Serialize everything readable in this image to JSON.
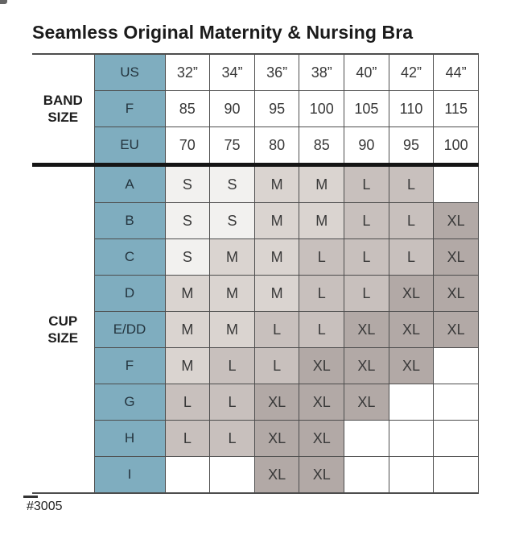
{
  "colors": {
    "teal": "#7FADBF",
    "size_s": "#F2F1EF",
    "size_m": "#DAD4D0",
    "size_l": "#C8C0BD",
    "size_xl": "#B2A9A6",
    "grid": "#4D4D4D",
    "divider": "#151515",
    "text": "#2F2F2F",
    "teal_text": "#24343E"
  },
  "chart_data": {
    "type": "table",
    "title": "Seamless Original Maternity & Nursing Bra",
    "product_code": "#3005",
    "band_size": {
      "label": "BAND SIZE",
      "rows": [
        {
          "header": "US",
          "values": [
            "32”",
            "34”",
            "36”",
            "38”",
            "40”",
            "42”",
            "44”"
          ]
        },
        {
          "header": "F",
          "values": [
            "85",
            "90",
            "95",
            "100",
            "105",
            "110",
            "115"
          ]
        },
        {
          "header": "EU",
          "values": [
            "70",
            "75",
            "80",
            "85",
            "90",
            "95",
            "100"
          ]
        }
      ]
    },
    "cup_size": {
      "label": "CUP SIZE",
      "rows": [
        {
          "header": "A",
          "values": [
            "S",
            "S",
            "M",
            "M",
            "L",
            "L",
            ""
          ]
        },
        {
          "header": "B",
          "values": [
            "S",
            "S",
            "M",
            "M",
            "L",
            "L",
            "XL"
          ]
        },
        {
          "header": "C",
          "values": [
            "S",
            "M",
            "M",
            "L",
            "L",
            "L",
            "XL"
          ]
        },
        {
          "header": "D",
          "values": [
            "M",
            "M",
            "M",
            "L",
            "L",
            "XL",
            "XL"
          ]
        },
        {
          "header": "E/DD",
          "values": [
            "M",
            "M",
            "L",
            "L",
            "XL",
            "XL",
            "XL"
          ]
        },
        {
          "header": "F",
          "values": [
            "M",
            "L",
            "L",
            "XL",
            "XL",
            "XL",
            ""
          ]
        },
        {
          "header": "G",
          "values": [
            "L",
            "L",
            "XL",
            "XL",
            "XL",
            "",
            ""
          ]
        },
        {
          "header": "H",
          "values": [
            "L",
            "L",
            "XL",
            "XL",
            "",
            "",
            ""
          ]
        },
        {
          "header": "I",
          "values": [
            "",
            "",
            "XL",
            "XL",
            "",
            "",
            ""
          ]
        }
      ]
    },
    "size_colors": {
      "S": "#F2F1EF",
      "M": "#DAD4D0",
      "L": "#C8C0BD",
      "XL": "#B2A9A6"
    }
  }
}
